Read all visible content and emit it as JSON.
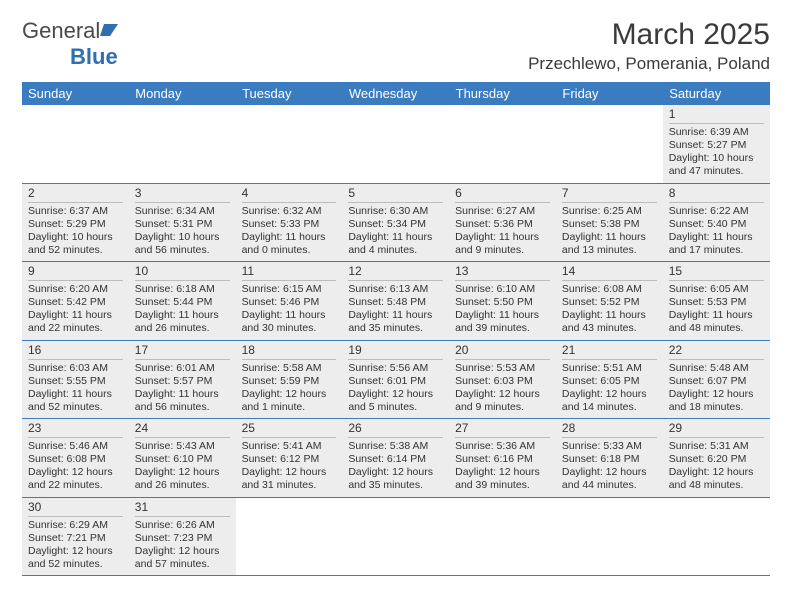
{
  "logo": {
    "text1": "General",
    "text2": "Blue"
  },
  "title": "March 2025",
  "location": "Przechlewo, Pomerania, Poland",
  "colors": {
    "header_bg": "#3b7bbf",
    "header_text": "#ffffff",
    "cell_bg": "#ededed",
    "border": "#3b7bbf",
    "logo_blue": "#2f6fb0"
  },
  "weekdays": [
    "Sunday",
    "Monday",
    "Tuesday",
    "Wednesday",
    "Thursday",
    "Friday",
    "Saturday"
  ],
  "weeks": [
    [
      null,
      null,
      null,
      null,
      null,
      null,
      {
        "d": "1",
        "sr": "Sunrise: 6:39 AM",
        "ss": "Sunset: 5:27 PM",
        "dl1": "Daylight: 10 hours",
        "dl2": "and 47 minutes."
      }
    ],
    [
      {
        "d": "2",
        "sr": "Sunrise: 6:37 AM",
        "ss": "Sunset: 5:29 PM",
        "dl1": "Daylight: 10 hours",
        "dl2": "and 52 minutes."
      },
      {
        "d": "3",
        "sr": "Sunrise: 6:34 AM",
        "ss": "Sunset: 5:31 PM",
        "dl1": "Daylight: 10 hours",
        "dl2": "and 56 minutes."
      },
      {
        "d": "4",
        "sr": "Sunrise: 6:32 AM",
        "ss": "Sunset: 5:33 PM",
        "dl1": "Daylight: 11 hours",
        "dl2": "and 0 minutes."
      },
      {
        "d": "5",
        "sr": "Sunrise: 6:30 AM",
        "ss": "Sunset: 5:34 PM",
        "dl1": "Daylight: 11 hours",
        "dl2": "and 4 minutes."
      },
      {
        "d": "6",
        "sr": "Sunrise: 6:27 AM",
        "ss": "Sunset: 5:36 PM",
        "dl1": "Daylight: 11 hours",
        "dl2": "and 9 minutes."
      },
      {
        "d": "7",
        "sr": "Sunrise: 6:25 AM",
        "ss": "Sunset: 5:38 PM",
        "dl1": "Daylight: 11 hours",
        "dl2": "and 13 minutes."
      },
      {
        "d": "8",
        "sr": "Sunrise: 6:22 AM",
        "ss": "Sunset: 5:40 PM",
        "dl1": "Daylight: 11 hours",
        "dl2": "and 17 minutes."
      }
    ],
    [
      {
        "d": "9",
        "sr": "Sunrise: 6:20 AM",
        "ss": "Sunset: 5:42 PM",
        "dl1": "Daylight: 11 hours",
        "dl2": "and 22 minutes."
      },
      {
        "d": "10",
        "sr": "Sunrise: 6:18 AM",
        "ss": "Sunset: 5:44 PM",
        "dl1": "Daylight: 11 hours",
        "dl2": "and 26 minutes."
      },
      {
        "d": "11",
        "sr": "Sunrise: 6:15 AM",
        "ss": "Sunset: 5:46 PM",
        "dl1": "Daylight: 11 hours",
        "dl2": "and 30 minutes."
      },
      {
        "d": "12",
        "sr": "Sunrise: 6:13 AM",
        "ss": "Sunset: 5:48 PM",
        "dl1": "Daylight: 11 hours",
        "dl2": "and 35 minutes."
      },
      {
        "d": "13",
        "sr": "Sunrise: 6:10 AM",
        "ss": "Sunset: 5:50 PM",
        "dl1": "Daylight: 11 hours",
        "dl2": "and 39 minutes."
      },
      {
        "d": "14",
        "sr": "Sunrise: 6:08 AM",
        "ss": "Sunset: 5:52 PM",
        "dl1": "Daylight: 11 hours",
        "dl2": "and 43 minutes."
      },
      {
        "d": "15",
        "sr": "Sunrise: 6:05 AM",
        "ss": "Sunset: 5:53 PM",
        "dl1": "Daylight: 11 hours",
        "dl2": "and 48 minutes."
      }
    ],
    [
      {
        "d": "16",
        "sr": "Sunrise: 6:03 AM",
        "ss": "Sunset: 5:55 PM",
        "dl1": "Daylight: 11 hours",
        "dl2": "and 52 minutes."
      },
      {
        "d": "17",
        "sr": "Sunrise: 6:01 AM",
        "ss": "Sunset: 5:57 PM",
        "dl1": "Daylight: 11 hours",
        "dl2": "and 56 minutes."
      },
      {
        "d": "18",
        "sr": "Sunrise: 5:58 AM",
        "ss": "Sunset: 5:59 PM",
        "dl1": "Daylight: 12 hours",
        "dl2": "and 1 minute."
      },
      {
        "d": "19",
        "sr": "Sunrise: 5:56 AM",
        "ss": "Sunset: 6:01 PM",
        "dl1": "Daylight: 12 hours",
        "dl2": "and 5 minutes."
      },
      {
        "d": "20",
        "sr": "Sunrise: 5:53 AM",
        "ss": "Sunset: 6:03 PM",
        "dl1": "Daylight: 12 hours",
        "dl2": "and 9 minutes."
      },
      {
        "d": "21",
        "sr": "Sunrise: 5:51 AM",
        "ss": "Sunset: 6:05 PM",
        "dl1": "Daylight: 12 hours",
        "dl2": "and 14 minutes."
      },
      {
        "d": "22",
        "sr": "Sunrise: 5:48 AM",
        "ss": "Sunset: 6:07 PM",
        "dl1": "Daylight: 12 hours",
        "dl2": "and 18 minutes."
      }
    ],
    [
      {
        "d": "23",
        "sr": "Sunrise: 5:46 AM",
        "ss": "Sunset: 6:08 PM",
        "dl1": "Daylight: 12 hours",
        "dl2": "and 22 minutes."
      },
      {
        "d": "24",
        "sr": "Sunrise: 5:43 AM",
        "ss": "Sunset: 6:10 PM",
        "dl1": "Daylight: 12 hours",
        "dl2": "and 26 minutes."
      },
      {
        "d": "25",
        "sr": "Sunrise: 5:41 AM",
        "ss": "Sunset: 6:12 PM",
        "dl1": "Daylight: 12 hours",
        "dl2": "and 31 minutes."
      },
      {
        "d": "26",
        "sr": "Sunrise: 5:38 AM",
        "ss": "Sunset: 6:14 PM",
        "dl1": "Daylight: 12 hours",
        "dl2": "and 35 minutes."
      },
      {
        "d": "27",
        "sr": "Sunrise: 5:36 AM",
        "ss": "Sunset: 6:16 PM",
        "dl1": "Daylight: 12 hours",
        "dl2": "and 39 minutes."
      },
      {
        "d": "28",
        "sr": "Sunrise: 5:33 AM",
        "ss": "Sunset: 6:18 PM",
        "dl1": "Daylight: 12 hours",
        "dl2": "and 44 minutes."
      },
      {
        "d": "29",
        "sr": "Sunrise: 5:31 AM",
        "ss": "Sunset: 6:20 PM",
        "dl1": "Daylight: 12 hours",
        "dl2": "and 48 minutes."
      }
    ],
    [
      {
        "d": "30",
        "sr": "Sunrise: 6:29 AM",
        "ss": "Sunset: 7:21 PM",
        "dl1": "Daylight: 12 hours",
        "dl2": "and 52 minutes."
      },
      {
        "d": "31",
        "sr": "Sunrise: 6:26 AM",
        "ss": "Sunset: 7:23 PM",
        "dl1": "Daylight: 12 hours",
        "dl2": "and 57 minutes."
      },
      null,
      null,
      null,
      null,
      null
    ]
  ]
}
